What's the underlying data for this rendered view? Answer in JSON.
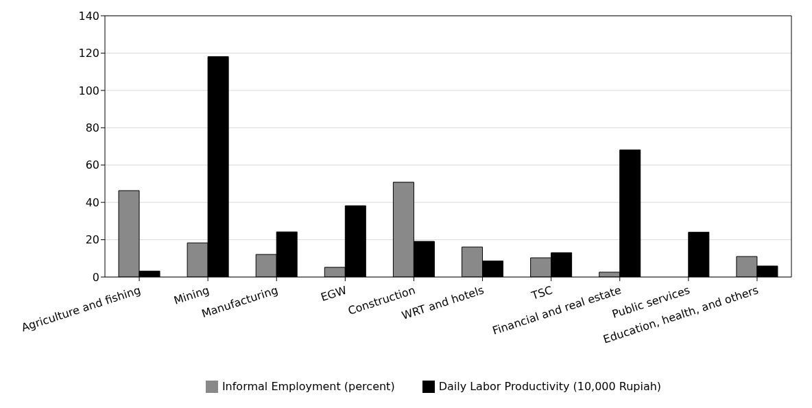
{
  "chart_data": {
    "type": "bar",
    "categories": [
      "Agriculture and fishing",
      "Mining",
      "Manufacturing",
      "EGW",
      "Construction",
      "WRT and hotels",
      "TSC",
      "Financial and real estate",
      "Public services",
      "Education, health, and others"
    ],
    "series": [
      {
        "name": "Informal Employment (percent)",
        "color": "#898989",
        "values": [
          46.3,
          18.3,
          12.1,
          5.2,
          50.8,
          16.1,
          10.3,
          2.6,
          null,
          11.0
        ]
      },
      {
        "name": "Daily Labor Productivity (10,000 Rupiah)",
        "color": "#000000",
        "values": [
          3.2,
          118.1,
          24.2,
          38.2,
          19.1,
          8.6,
          13.0,
          68.1,
          24.0,
          5.9
        ]
      }
    ],
    "ylim": [
      0,
      140
    ],
    "yticks": [
      0,
      20,
      40,
      60,
      80,
      100,
      120,
      140
    ],
    "grid": "y",
    "legend": "bottom"
  }
}
